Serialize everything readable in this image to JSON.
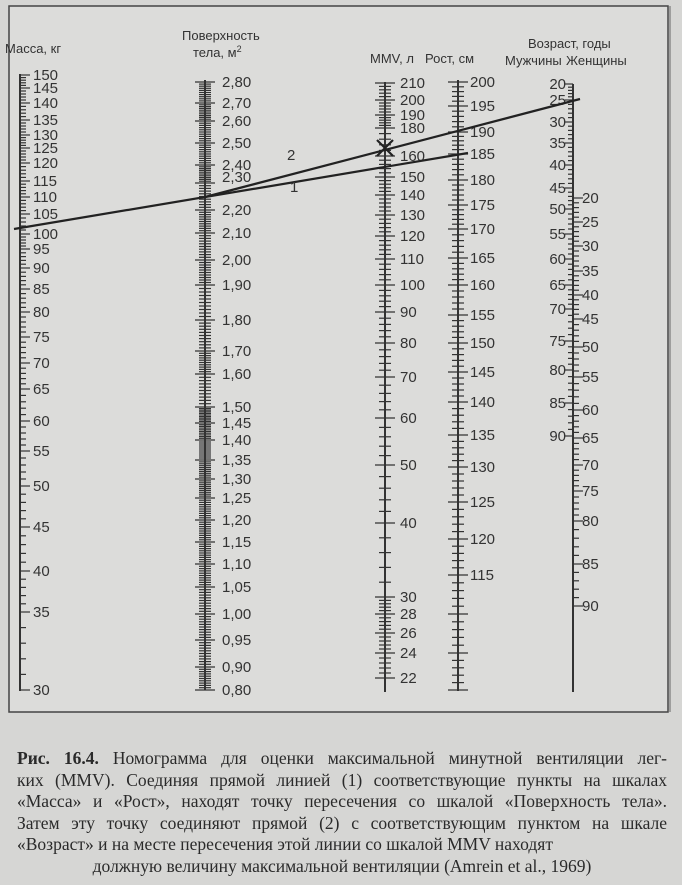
{
  "figure": {
    "headers": {
      "mass": "Масса, кг",
      "surface_line1": "Поверхность",
      "surface_line2": "тела, м",
      "surface_sup": "2",
      "mmv": "MMV, л",
      "height": "Рост, см",
      "age": "Возраст, годы",
      "age_men": "Мужчины",
      "age_women": "Женщины"
    },
    "scales": {
      "mass": [
        "150",
        "145",
        "140",
        "135",
        "130",
        "125",
        "120",
        "115",
        "110",
        "105",
        "100",
        "95",
        "90",
        "85",
        "80",
        "75",
        "70",
        "65",
        "60",
        "55",
        "50",
        "45",
        "40",
        "35",
        "30"
      ],
      "surface": [
        "2,80",
        "2,70",
        "2,60",
        "2,50",
        "2,40",
        "2,30",
        "2,20",
        "2,10",
        "2,00",
        "1,90",
        "1,80",
        "1,70",
        "1,60",
        "1,50",
        "1,45",
        "1,40",
        "1,35",
        "1,30",
        "1,25",
        "1,20",
        "1,15",
        "1,10",
        "1,05",
        "1,00",
        "0,95",
        "0,90",
        "0,80"
      ],
      "mmv": [
        "210",
        "200",
        "190",
        "180",
        "160",
        "150",
        "140",
        "130",
        "120",
        "110",
        "100",
        "90",
        "80",
        "70",
        "60",
        "50",
        "40",
        "30",
        "28",
        "26",
        "24",
        "22"
      ],
      "height": [
        "200",
        "195",
        "190",
        "185",
        "180",
        "175",
        "170",
        "165",
        "160",
        "155",
        "150",
        "145",
        "140",
        "135",
        "130",
        "125",
        "120",
        "115"
      ],
      "age_men": [
        "20",
        "25",
        "30",
        "35",
        "40",
        "45",
        "50",
        "55",
        "60",
        "65",
        "70",
        "75",
        "80",
        "85",
        "90"
      ],
      "age_women": [
        "20",
        "25",
        "30",
        "35",
        "40",
        "45",
        "50",
        "55",
        "60",
        "65",
        "70",
        "75",
        "80",
        "85",
        "90"
      ]
    },
    "example": {
      "line1_label": "1",
      "line2_label": "2",
      "mass_kg": 101,
      "height_cm": 185,
      "surface_m2": 2.27,
      "age_men_years": 25,
      "mmv_l": 168
    }
  },
  "caption": {
    "figure_number": "Рис. 16.4.",
    "lines": [
      "Номограмма для оценки максимальной минутной вентиляции лег-",
      "ких (MMV). Соединяя прямой линией (1) соответствующие пункты на шкалах",
      "«Масса» и «Рост», находят точку пересечения со шкалой «Поверхность тела».",
      "Затем эту точку соединяют прямой (2) с соответствующим пунктом на шкале",
      "«Возраст» и на месте пересечения этой линии со шкалой MMV находят",
      "должную величину максимальной вентиляции (Amrein et al., 1969)"
    ]
  }
}
